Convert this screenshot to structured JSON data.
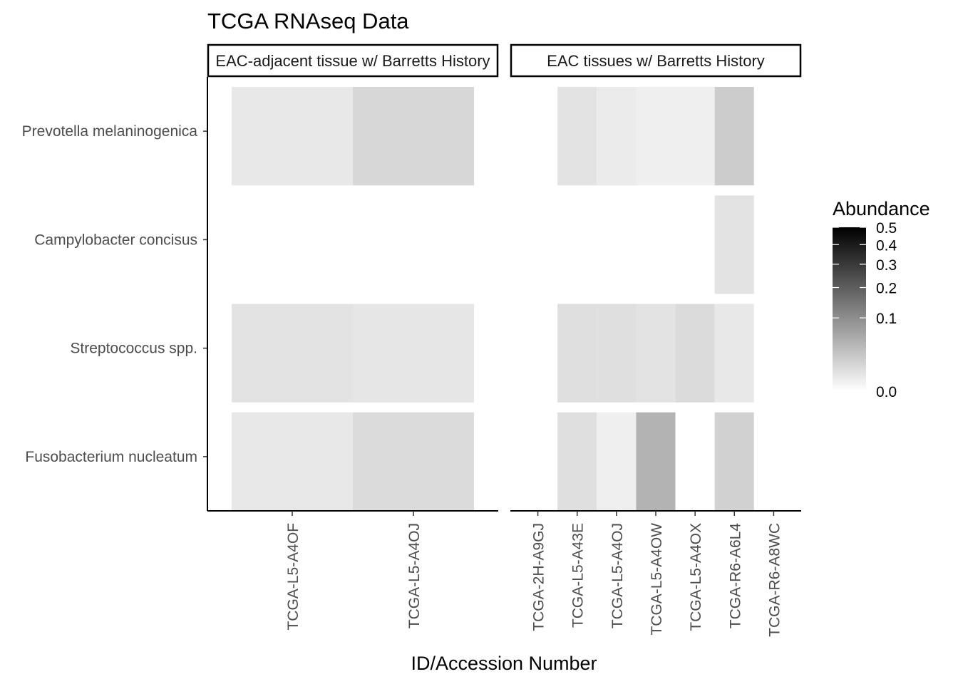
{
  "chart_data": {
    "type": "heatmap",
    "title": "TCGA RNAseq Data",
    "xlabel": "ID/Accession Number",
    "ylabel": "",
    "rows": [
      "Prevotella melaninogenica",
      "Campylobacter concisus",
      "Streptococcus spp.",
      "Fusobacterium nucleatum"
    ],
    "facets": [
      {
        "label": "EAC-adjacent tissue w/ Barretts History",
        "columns": [
          "TCGA-L5-A4OF",
          "TCGA-L5-A4OJ"
        ],
        "values": [
          [
            0.004,
            0.012
          ],
          [
            0.0,
            0.0
          ],
          [
            0.006,
            0.005
          ],
          [
            0.004,
            0.01
          ]
        ]
      },
      {
        "label": "EAC tissues w/ Barretts History",
        "columns": [
          "TCGA-2H-A9GJ",
          "TCGA-L5-A43E",
          "TCGA-L5-A4OJ",
          "TCGA-L5-A4OW",
          "TCGA-L5-A4OX",
          "TCGA-R6-A6L4",
          "TCGA-R6-A8WC"
        ],
        "values": [
          [
            0.0,
            0.006,
            0.003,
            0.002,
            0.002,
            0.02,
            0.0
          ],
          [
            0.0,
            0.0,
            0.0,
            0.0,
            0.0,
            0.006,
            0.0
          ],
          [
            0.0,
            0.008,
            0.008,
            0.006,
            0.01,
            0.004,
            0.0
          ],
          [
            0.0,
            0.008,
            0.002,
            0.045,
            0.0,
            0.016,
            0.0
          ]
        ]
      }
    ],
    "legend": {
      "title": "Abundance",
      "ticks": [
        "0.0",
        "0.1",
        "0.2",
        "0.3",
        "0.4",
        "0.5"
      ],
      "tick_values": [
        0.0,
        0.1,
        0.2,
        0.3,
        0.4,
        0.5
      ],
      "range": [
        0,
        0.5
      ],
      "scale": "sqrt",
      "position": "right",
      "low_color": "#ffffff",
      "high_color": "#000000"
    }
  }
}
